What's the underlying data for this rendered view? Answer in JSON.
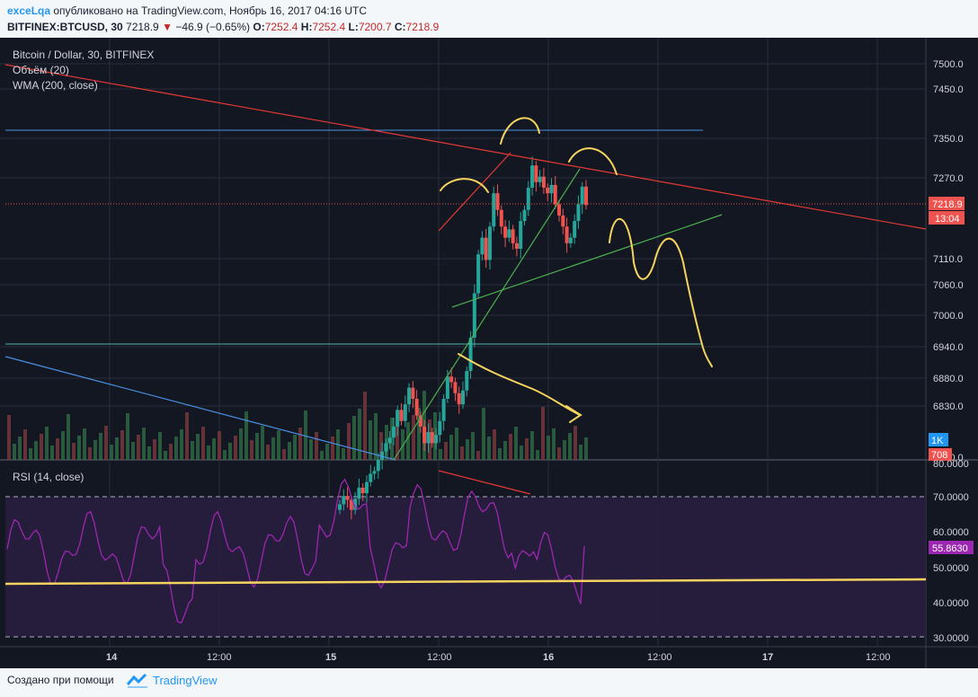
{
  "header": {
    "user": "exceLqa",
    "published_text": "опубликовано на TradingView.com, Ноябрь 16, 2017 04:16 UTC",
    "symbol": "BITFINEX:BTCUSD, 30",
    "last": "7218.9",
    "change": "−46.9 (−0.65%)",
    "o_label": "O:",
    "o": "7252.4",
    "h_label": "H:",
    "h": "7252.4",
    "l_label": "L:",
    "l": "7200.7",
    "c_label": "C:",
    "c": "7218.9"
  },
  "legend": {
    "title": "Bitcoin / Dollar, 30, BITFINEX",
    "volume": "Объём (20)",
    "wma": "WMA (200, close)",
    "rsi": "RSI (14, close)"
  },
  "price_axis": {
    "ticks": [
      "7500.0",
      "7450.0",
      "7350.0",
      "7270.0",
      "7110.0",
      "7060.0",
      "7000.0",
      "6940.0",
      "6880.0",
      "6830.0",
      "6780.0",
      "80.0000"
    ],
    "last_price": "7218.9",
    "countdown": "13:04",
    "volume_label": "1K",
    "volume_value": "708"
  },
  "rsi_axis": {
    "ticks": [
      "70.0000",
      "60.0000",
      "50.0000",
      "40.0000",
      "30.0000"
    ],
    "last": "55.8630"
  },
  "time_axis": [
    "14",
    "12:00",
    "15",
    "12:00",
    "16",
    "12:00",
    "17",
    "12:00"
  ],
  "footer": {
    "made_with": "Создано при помощи",
    "brand": "TradingView"
  },
  "colors": {
    "background": "#131722",
    "up": "#26a69a",
    "down": "#ef5350",
    "rsi": "#9c27b0",
    "annotation": "#f5d35f",
    "trend_red": "#e53935",
    "trend_green": "#4caf50",
    "trend_blue": "#4a90e2"
  },
  "chart_data": {
    "type": "candlestick",
    "symbol": "BTCUSD",
    "timeframe": "30",
    "exchange": "BITFINEX",
    "ohlc_last": {
      "open": 7252.4,
      "high": 7252.4,
      "low": 7200.7,
      "close": 7218.9
    },
    "closes": [
      6680,
      6695,
      6688,
      6670,
      6690,
      6710,
      6700,
      6720,
      6735,
      6740,
      6760,
      6775,
      6790,
      6800,
      6820,
      6850,
      6830,
      6860,
      6890,
      6870,
      6840,
      6820,
      6790,
      6810,
      6790,
      6805,
      6830,
      6870,
      6910,
      6900,
      6880,
      6860,
      6885,
      6920,
      6980,
      7060,
      7130,
      7160,
      7120,
      7180,
      7240,
      7210,
      7180,
      7160,
      7175,
      7150,
      7140,
      7190,
      7210,
      7250,
      7290,
      7260,
      7270,
      7250,
      7240,
      7255,
      7220,
      7200,
      7180,
      7150,
      7160,
      7190,
      7220,
      7252,
      7218.9
    ],
    "rsi_last": 55.863,
    "rsi_levels": [
      70,
      30
    ],
    "ylim": [
      6760,
      7520
    ]
  }
}
